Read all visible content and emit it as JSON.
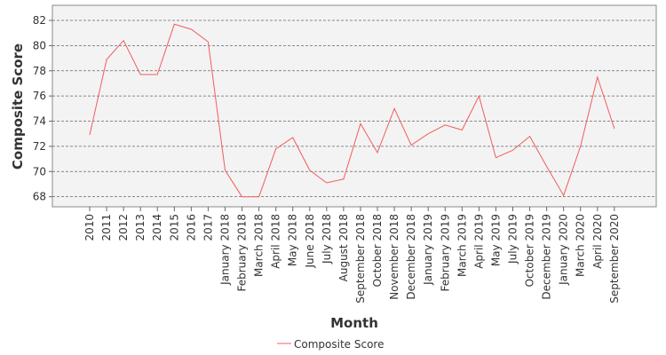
{
  "chart_data": {
    "type": "line",
    "xlabel": "Month",
    "ylabel": "Composite Score",
    "ylim": [
      67.2,
      83.2
    ],
    "yticks": [
      68,
      70,
      72,
      74,
      76,
      78,
      80,
      82
    ],
    "grid": "horizontal-dashed",
    "legend_position": "bottom",
    "categories": [
      "2010",
      "2011",
      "2012",
      "2013",
      "2014",
      "2015",
      "2016",
      "2017",
      "January 2018",
      "February 2018",
      "March 2018",
      "April 2018",
      "May 2018",
      "June 2018",
      "July 2018",
      "August 2018",
      "September 2018",
      "October 2018",
      "November 2018",
      "December 2018",
      "January 2019",
      "February 2019",
      "March 2019",
      "April 2019",
      "May 2019",
      "July 2019",
      "October 2019",
      "December 2019",
      "January 2020",
      "March 2020",
      "April 2020",
      "September 2020"
    ],
    "series": [
      {
        "name": "Composite Score",
        "color": "#f25c5c",
        "values": [
          72.9,
          78.9,
          80.4,
          77.7,
          77.7,
          81.7,
          81.3,
          80.3,
          70.1,
          68.0,
          68.0,
          71.8,
          72.7,
          70.1,
          69.1,
          69.4,
          73.8,
          71.5,
          75.0,
          72.1,
          73.0,
          73.7,
          73.3,
          76.0,
          71.1,
          71.7,
          72.8,
          70.4,
          68.1,
          72.0,
          77.5,
          73.4
        ]
      }
    ]
  }
}
